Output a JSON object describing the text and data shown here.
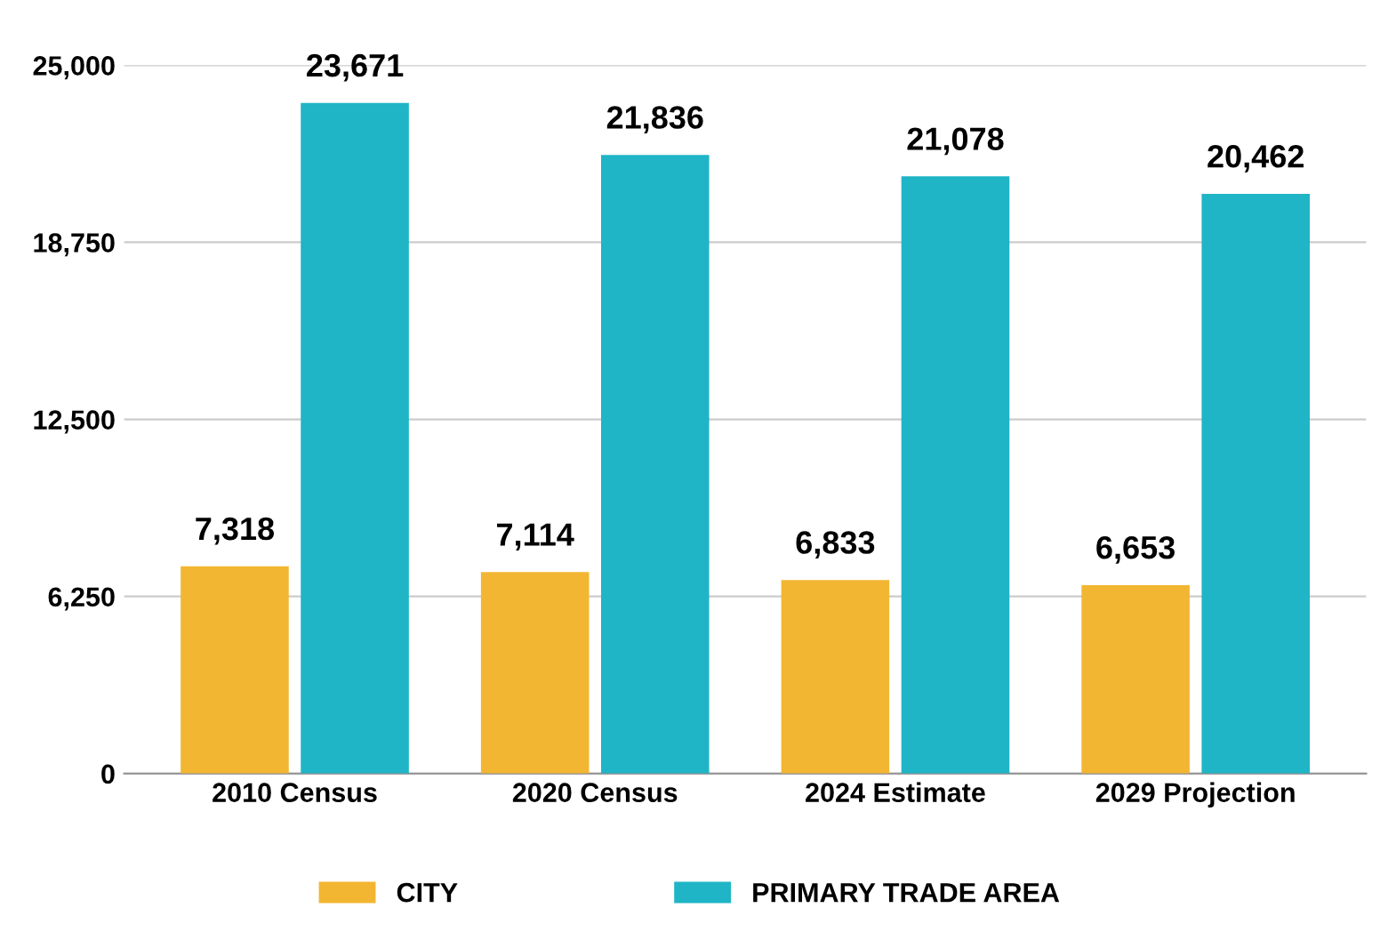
{
  "chart_data": {
    "type": "bar",
    "categories": [
      "2010 Census",
      "2020 Census",
      "2024 Estimate",
      "2029 Projection"
    ],
    "series": [
      {
        "name": "CITY",
        "color": "#f2b632",
        "values": [
          7318,
          7114,
          6833,
          6653
        ],
        "value_labels": [
          "7,318",
          "7,114",
          "6,833",
          "6,653"
        ]
      },
      {
        "name": "PRIMARY TRADE AREA",
        "color": "#1fb5c6",
        "values": [
          23671,
          21836,
          21078,
          20462
        ],
        "value_labels": [
          "23,671",
          "21,836",
          "21,078",
          "20,462"
        ]
      }
    ],
    "ylim": [
      0,
      25000
    ],
    "yticks": [
      {
        "value": 0,
        "label": "0"
      },
      {
        "value": 6250,
        "label": "6,250"
      },
      {
        "value": 12500,
        "label": "12,500"
      },
      {
        "value": 18750,
        "label": "18,750"
      },
      {
        "value": 25000,
        "label": "25,000"
      }
    ],
    "grid": "y",
    "legend": "bottom"
  }
}
